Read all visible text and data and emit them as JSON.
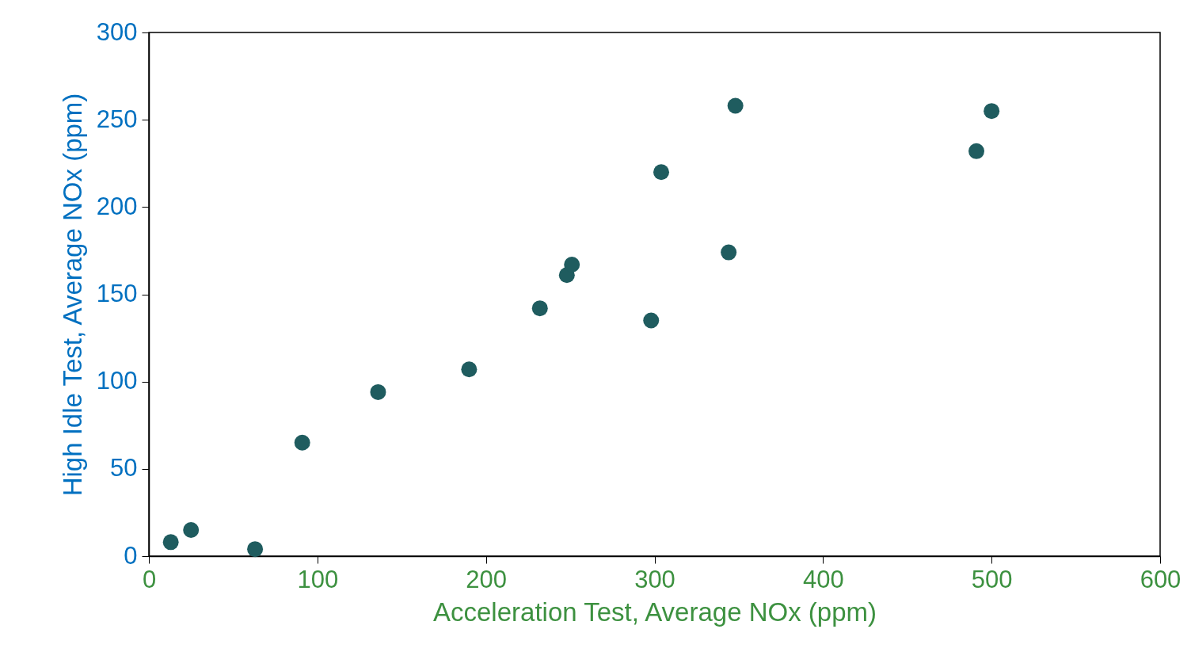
{
  "chart_data": {
    "type": "scatter",
    "xlabel": "Acceleration Test, Average NOx (ppm)",
    "ylabel": "High Idle Test, Average NOx (ppm)",
    "x": [
      13,
      25,
      63,
      91,
      136,
      190,
      232,
      248,
      251,
      298,
      304,
      344,
      348,
      491,
      500
    ],
    "values": [
      8,
      15,
      4,
      65,
      94,
      107,
      142,
      161,
      167,
      135,
      220,
      174,
      258,
      232,
      255
    ],
    "color": "#1f5c5f",
    "marker": "circle",
    "xlim": [
      0,
      600
    ],
    "xticks": [
      0,
      100,
      200,
      300,
      400,
      500,
      600
    ],
    "ylim": [
      0,
      300
    ],
    "yticks": [
      0,
      50,
      100,
      150,
      200,
      250,
      300
    ],
    "grid": false
  }
}
